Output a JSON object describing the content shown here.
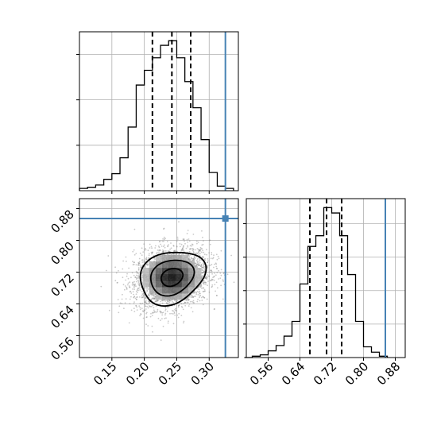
{
  "chart_data": {
    "type": "corner",
    "parameters": [
      "",
      ""
    ],
    "truth": {
      "x": 0.325,
      "y": 0.855,
      "color": "#4682b4"
    },
    "x_axis": {
      "lim": [
        0.1,
        0.345
      ],
      "ticks": [
        0.15,
        0.2,
        0.25,
        0.3
      ],
      "tick_labels": [
        "0.15",
        "0.20",
        "0.25",
        "0.30"
      ]
    },
    "y_axis": {
      "lim": [
        0.505,
        0.905
      ],
      "ticks": [
        0.56,
        0.64,
        0.72,
        0.8,
        0.88
      ],
      "tick_labels": [
        "0.56",
        "0.64",
        "0.72",
        "0.80",
        "0.88"
      ]
    },
    "hist_x": {
      "bin_edges": [
        0.1,
        0.1125,
        0.125,
        0.1375,
        0.15,
        0.1625,
        0.175,
        0.1875,
        0.2,
        0.2125,
        0.225,
        0.2375,
        0.25,
        0.2625,
        0.275,
        0.2875,
        0.3,
        0.3125,
        0.325,
        0.3375
      ],
      "counts": [
        2,
        3,
        5,
        10,
        15,
        29,
        56,
        93,
        106,
        117,
        128,
        132,
        117,
        96,
        73,
        45,
        16,
        4,
        2
      ],
      "quantiles": [
        0.2125,
        0.2425,
        0.2715
      ]
    },
    "hist_y": {
      "bin_edges": [
        0.5,
        0.52,
        0.54,
        0.56,
        0.58,
        0.6,
        0.62,
        0.64,
        0.66,
        0.68,
        0.7,
        0.72,
        0.74,
        0.76,
        0.78,
        0.8,
        0.82,
        0.84,
        0.86
      ],
      "counts": [
        0,
        1,
        2,
        5,
        9,
        16,
        27,
        55,
        83,
        91,
        112,
        108,
        91,
        62,
        27,
        8,
        4,
        1
      ],
      "quantiles": [
        0.665,
        0.707,
        0.745
      ]
    },
    "density_2d": {
      "mean": [
        0.2425,
        0.707
      ],
      "sigma": [
        0.029,
        0.039
      ],
      "contour_levels_sigma": [
        0.5,
        1.0,
        1.5
      ],
      "sample_count": 3000
    },
    "grid": true
  }
}
